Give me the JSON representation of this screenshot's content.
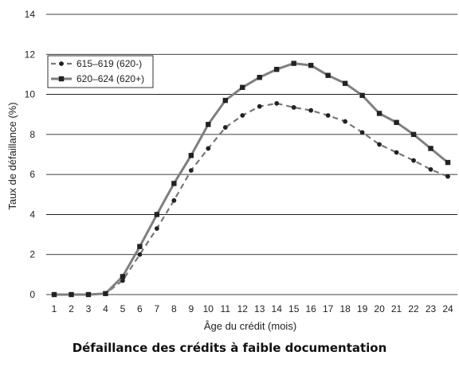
{
  "caption": "Défaillance des crédits à faible documentation",
  "chart_data": {
    "type": "line",
    "title": "",
    "xlabel": "Âge du crédit (mois)",
    "ylabel": "Taux de défaillance (%)",
    "xlim": [
      1,
      24
    ],
    "ylim": [
      0,
      14
    ],
    "yticks": [
      0,
      2,
      4,
      6,
      8,
      10,
      12,
      14
    ],
    "x": [
      1,
      2,
      3,
      4,
      5,
      6,
      7,
      8,
      9,
      10,
      11,
      12,
      13,
      14,
      15,
      16,
      17,
      18,
      19,
      20,
      21,
      22,
      23,
      24
    ],
    "grid": "horizontal",
    "legend_position": "top-left",
    "series": [
      {
        "name": "615–619 (620-)",
        "style": "dashed",
        "marker": "circle",
        "color": "#777777",
        "values": [
          0,
          0,
          0,
          0.05,
          0.7,
          2.0,
          3.3,
          4.7,
          6.2,
          7.3,
          8.35,
          8.95,
          9.4,
          9.55,
          9.35,
          9.2,
          8.95,
          8.65,
          8.1,
          7.5,
          7.1,
          6.7,
          6.25,
          5.9
        ]
      },
      {
        "name": "620–624 (620+)",
        "style": "solid",
        "marker": "square",
        "color": "#7f7f7f",
        "values": [
          0,
          0,
          0,
          0.05,
          0.9,
          2.4,
          4.0,
          5.55,
          6.95,
          8.5,
          9.7,
          10.35,
          10.85,
          11.25,
          11.55,
          11.45,
          10.95,
          10.55,
          9.95,
          9.05,
          8.6,
          8.0,
          7.3,
          6.6
        ]
      }
    ]
  }
}
